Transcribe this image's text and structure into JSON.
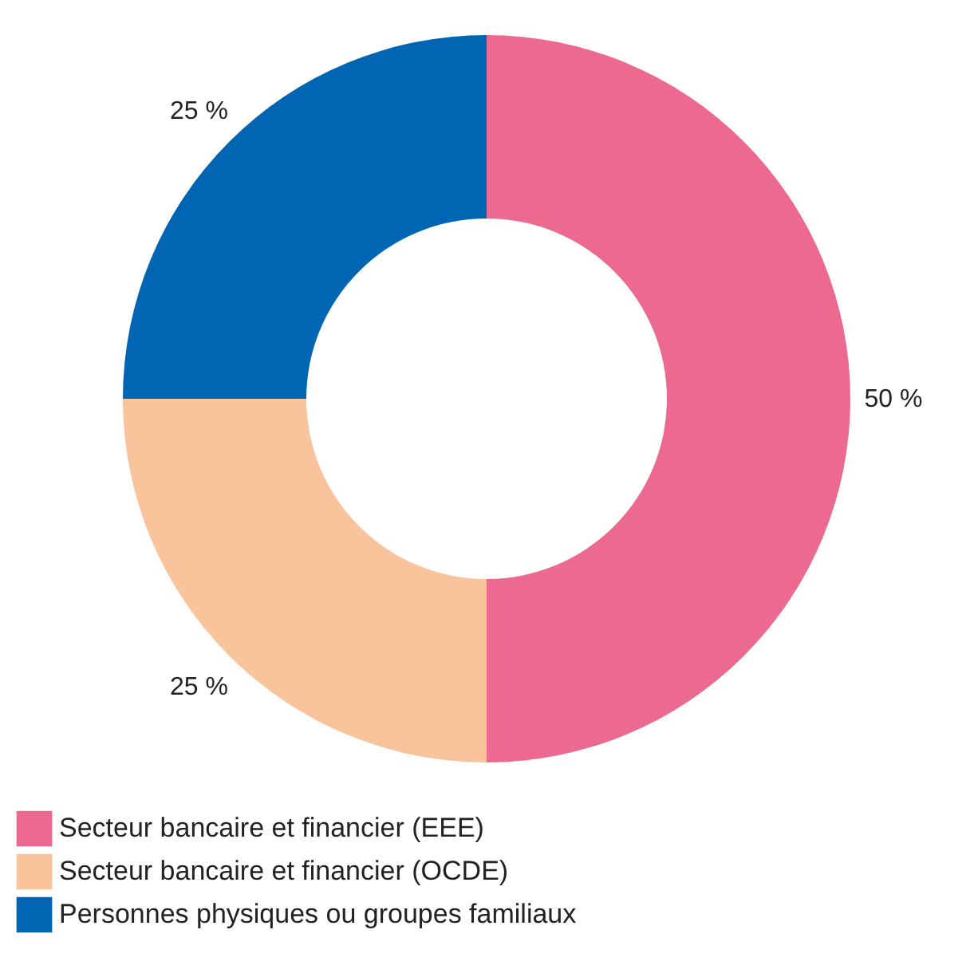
{
  "chart_data": {
    "type": "donut",
    "categories": [
      "Secteur bancaire et financier (EEE)",
      "Secteur bancaire et financier (OCDE)",
      "Personnes physiques ou groupes familiaux"
    ],
    "values": [
      50,
      25,
      25
    ],
    "colors": [
      "#ec6a8f",
      "#f9c39b",
      "#0066b3"
    ],
    "value_labels": [
      "50 %",
      "25 %",
      "25 %"
    ],
    "legend": "bottom"
  }
}
